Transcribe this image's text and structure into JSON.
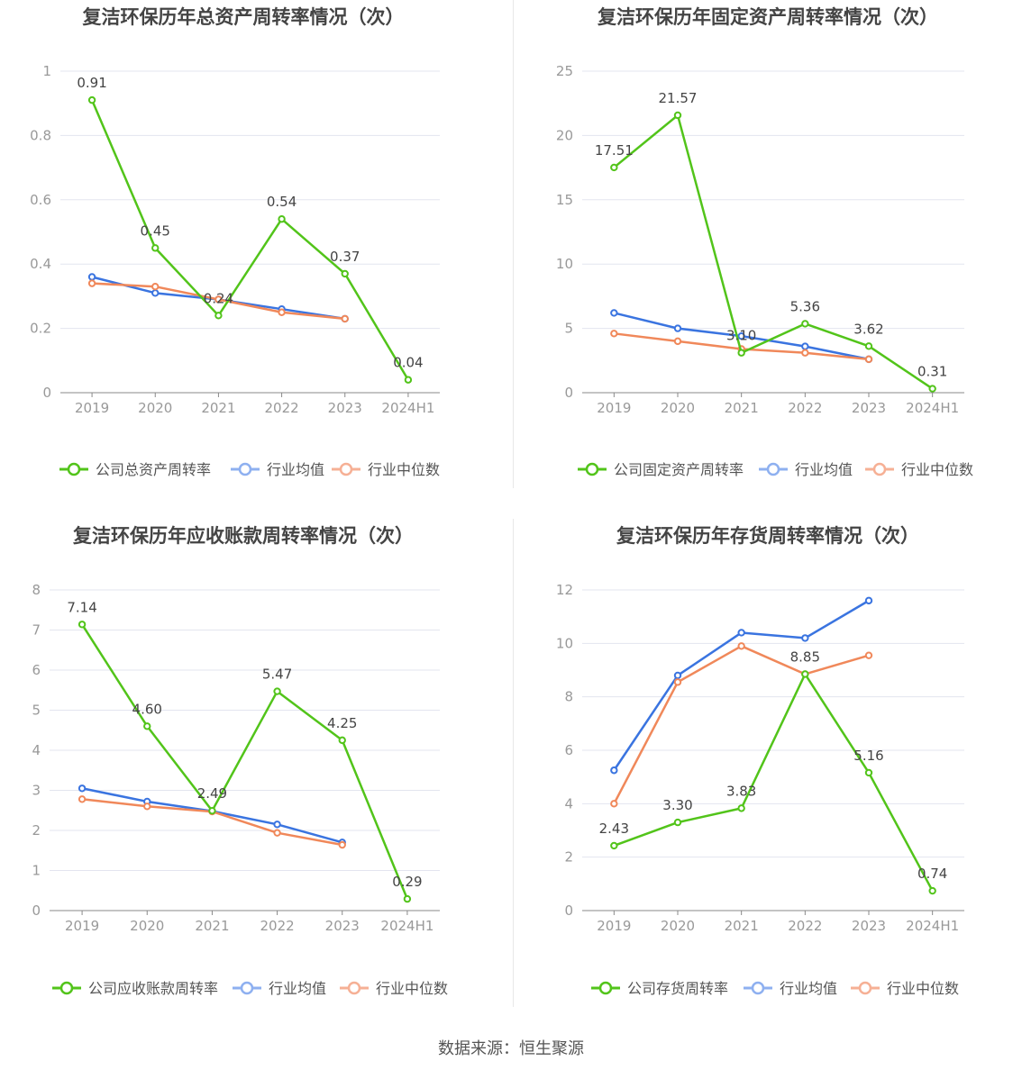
{
  "colors": {
    "company": "#52c41a",
    "average": "#3a74e0",
    "median": "#f0885a",
    "legend_average": "#8eb0f0",
    "legend_median": "#f6b095",
    "grid": "#e3e5ef",
    "axis_text": "#999999",
    "label_text": "#444444",
    "title_text": "#444444"
  },
  "footer": {
    "source": "数据来源：恒生聚源"
  },
  "chart_data": [
    {
      "type": "line",
      "title": "复洁环保历年总资产周转率情况（次）",
      "categories": [
        "2019",
        "2020",
        "2021",
        "2022",
        "2023",
        "2024H1"
      ],
      "ylim": [
        0,
        1
      ],
      "yticks": [
        "0",
        "0.2",
        "0.4",
        "0.6",
        "0.8",
        "1"
      ],
      "series": [
        {
          "name": "公司总资产周转率",
          "values": [
            0.91,
            0.45,
            0.24,
            0.54,
            0.37,
            0.04
          ],
          "labels": [
            "0.91",
            "0.45",
            "0.24",
            "0.54",
            "0.37",
            "0.04"
          ]
        },
        {
          "name": "行业均值",
          "values": [
            0.36,
            0.31,
            0.29,
            0.26,
            0.23,
            null
          ]
        },
        {
          "name": "行业中位数",
          "values": [
            0.34,
            0.33,
            0.29,
            0.25,
            0.23,
            null
          ]
        }
      ],
      "legend": "bottom",
      "grid": true
    },
    {
      "type": "line",
      "title": "复洁环保历年固定资产周转率情况（次）",
      "categories": [
        "2019",
        "2020",
        "2021",
        "2022",
        "2023",
        "2024H1"
      ],
      "ylim": [
        0,
        25
      ],
      "yticks": [
        "0",
        "5",
        "10",
        "15",
        "20",
        "25"
      ],
      "series": [
        {
          "name": "公司固定资产周转率",
          "values": [
            17.51,
            21.57,
            3.1,
            5.36,
            3.62,
            0.31
          ],
          "labels": [
            "17.51",
            "21.57",
            "3.10",
            "5.36",
            "3.62",
            "0.31"
          ]
        },
        {
          "name": "行业均值",
          "values": [
            6.2,
            5.0,
            4.4,
            3.6,
            2.6,
            null
          ]
        },
        {
          "name": "行业中位数",
          "values": [
            4.6,
            4.0,
            3.4,
            3.1,
            2.6,
            null
          ]
        }
      ],
      "legend": "bottom",
      "grid": true
    },
    {
      "type": "line",
      "title": "复洁环保历年应收账款周转率情况（次）",
      "categories": [
        "2019",
        "2020",
        "2021",
        "2022",
        "2023",
        "2024H1"
      ],
      "ylim": [
        0,
        8
      ],
      "yticks": [
        "0",
        "1",
        "2",
        "3",
        "4",
        "5",
        "6",
        "7",
        "8"
      ],
      "series": [
        {
          "name": "公司应收账款周转率",
          "values": [
            7.14,
            4.6,
            2.49,
            5.47,
            4.25,
            0.29
          ],
          "labels": [
            "7.14",
            "4.60",
            "2.49",
            "5.47",
            "4.25",
            "0.29"
          ]
        },
        {
          "name": "行业均值",
          "values": [
            3.05,
            2.72,
            2.48,
            2.15,
            1.7,
            null
          ]
        },
        {
          "name": "行业中位数",
          "values": [
            2.78,
            2.6,
            2.47,
            1.94,
            1.64,
            null
          ]
        }
      ],
      "legend": "bottom",
      "grid": true
    },
    {
      "type": "line",
      "title": "复洁环保历年存货周转率情况（次）",
      "categories": [
        "2019",
        "2020",
        "2021",
        "2022",
        "2023",
        "2024H1"
      ],
      "ylim": [
        0,
        12
      ],
      "yticks": [
        "0",
        "2",
        "4",
        "6",
        "8",
        "10",
        "12"
      ],
      "series": [
        {
          "name": "公司存货周转率",
          "values": [
            2.43,
            3.3,
            3.83,
            8.85,
            5.16,
            0.74
          ],
          "labels": [
            "2.43",
            "3.30",
            "3.83",
            "8.85",
            "5.16",
            "0.74"
          ]
        },
        {
          "name": "行业均值",
          "values": [
            5.25,
            8.8,
            10.4,
            10.2,
            11.6,
            null
          ]
        },
        {
          "name": "行业中位数",
          "values": [
            4.0,
            8.55,
            9.9,
            8.85,
            9.55,
            null
          ]
        }
      ],
      "legend": "bottom",
      "grid": true
    }
  ]
}
